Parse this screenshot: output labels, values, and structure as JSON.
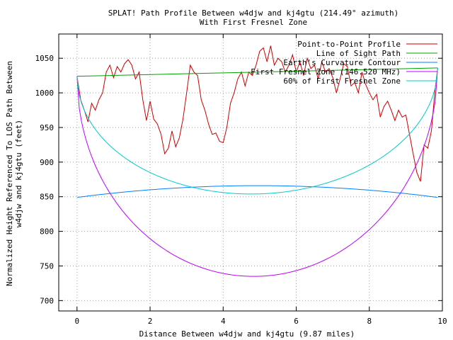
{
  "chart_data": {
    "type": "line",
    "title": "SPLAT! Path Profile Between w4djw and kj4gtu (214.49° azimuth)",
    "subtitle": "With First Fresnel Zone",
    "xlabel": "Distance Between w4djw and kj4gtu (9.87 miles)",
    "ylabel_line1": "Normalized Height Referenced To LOS Path Between",
    "ylabel_line2": "w4djw and kj4gtu (feet)",
    "xlim": [
      -0.5,
      10
    ],
    "ylim": [
      685,
      1085
    ],
    "x_ticks": [
      0,
      2,
      4,
      6,
      8,
      10
    ],
    "y_ticks": [
      700,
      750,
      800,
      850,
      900,
      950,
      1000,
      1050
    ],
    "grid": true,
    "legend_position": "top-right",
    "series": [
      {
        "name": "Point-to-Point Profile",
        "color": "#cc0000",
        "x": [
          0,
          0.1,
          0.2,
          0.3,
          0.4,
          0.5,
          0.6,
          0.7,
          0.8,
          0.9,
          1.0,
          1.1,
          1.2,
          1.3,
          1.4,
          1.5,
          1.6,
          1.7,
          1.8,
          1.9,
          2.0,
          2.1,
          2.2,
          2.3,
          2.4,
          2.5,
          2.6,
          2.7,
          2.8,
          2.9,
          3.0,
          3.1,
          3.2,
          3.3,
          3.4,
          3.5,
          3.6,
          3.7,
          3.8,
          3.9,
          4.0,
          4.1,
          4.2,
          4.3,
          4.4,
          4.5,
          4.6,
          4.7,
          4.8,
          4.9,
          5.0,
          5.1,
          5.2,
          5.3,
          5.4,
          5.5,
          5.6,
          5.7,
          5.8,
          5.9,
          6.0,
          6.1,
          6.2,
          6.3,
          6.4,
          6.5,
          6.6,
          6.7,
          6.8,
          6.9,
          7.0,
          7.1,
          7.2,
          7.3,
          7.4,
          7.5,
          7.6,
          7.7,
          7.8,
          7.9,
          8.0,
          8.1,
          8.2,
          8.3,
          8.4,
          8.5,
          8.6,
          8.7,
          8.8,
          8.9,
          9.0,
          9.1,
          9.2,
          9.3,
          9.4,
          9.5,
          9.6,
          9.7,
          9.8,
          9.87
        ],
        "y": [
          1024,
          990,
          975,
          958,
          985,
          975,
          990,
          1000,
          1030,
          1040,
          1022,
          1038,
          1030,
          1042,
          1048,
          1040,
          1020,
          1030,
          990,
          960,
          988,
          962,
          955,
          940,
          912,
          920,
          945,
          922,
          935,
          962,
          1000,
          1040,
          1030,
          1025,
          990,
          975,
          955,
          940,
          942,
          930,
          928,
          950,
          985,
          1000,
          1020,
          1030,
          1010,
          1030,
          1025,
          1040,
          1060,
          1065,
          1045,
          1068,
          1040,
          1050,
          1045,
          1030,
          1040,
          1055,
          1030,
          1045,
          1025,
          1050,
          1035,
          1040,
          1020,
          1045,
          1030,
          1035,
          1022,
          1000,
          1020,
          1042,
          1038,
          1010,
          1015,
          1000,
          1030,
          1012,
          1000,
          990,
          998,
          965,
          980,
          988,
          975,
          960,
          975,
          965,
          968,
          940,
          912,
          885,
          872,
          925,
          920,
          945,
          1005,
          1035
        ]
      },
      {
        "name": "Line of Sight Path",
        "color": "#00a000",
        "x": [
          0,
          9.87
        ],
        "y": [
          1024,
          1036
        ]
      },
      {
        "name": "Earth's Curvature Contour",
        "color": "#0080ff",
        "curve": "arc",
        "x": [
          0,
          2,
          4,
          4.935,
          6,
          8,
          9.87
        ],
        "y": [
          849,
          860,
          865,
          866,
          865,
          860,
          849
        ]
      },
      {
        "name": "First Fresnel Zone (146.520 MHz)",
        "color": "#c000ff",
        "curve": "fresnel",
        "x": [
          0,
          0.5,
          1,
          2,
          3,
          4,
          4.935,
          6,
          7,
          8,
          9,
          9.87
        ],
        "y": [
          1024,
          917,
          873,
          814,
          777,
          743,
          735,
          742,
          760,
          795,
          858,
          1036
        ]
      },
      {
        "name": "60% of First Fresnel Zone",
        "color": "#00cccc",
        "curve": "fresnel",
        "x": [
          0,
          1,
          2,
          3,
          4,
          4.935,
          6,
          7,
          8,
          9,
          9.87
        ],
        "y": [
          1024,
          940,
          900,
          872,
          858,
          854,
          860,
          875,
          905,
          950,
          1036
        ]
      }
    ]
  }
}
